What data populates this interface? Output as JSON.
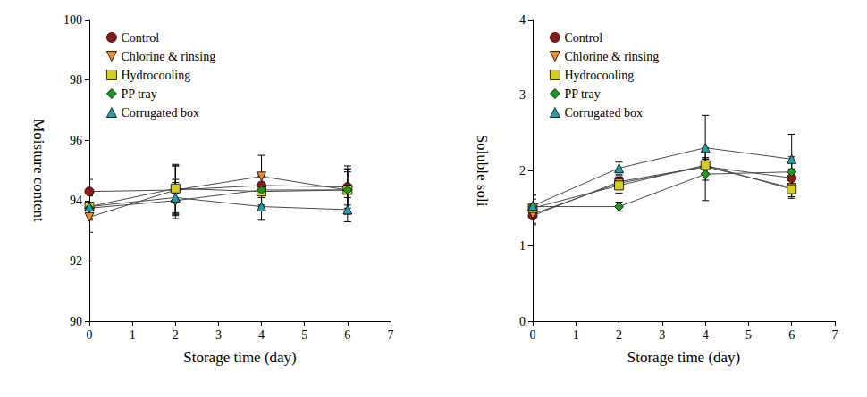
{
  "chart_data": [
    {
      "type": "line",
      "xlabel": "Storage time (day)",
      "ylabel": "Moisture content",
      "x": [
        0,
        2,
        4,
        6
      ],
      "xlim": [
        0,
        7
      ],
      "xticks": [
        0,
        1,
        2,
        3,
        4,
        5,
        6,
        7
      ],
      "ylim": [
        90,
        100
      ],
      "yticks": [
        90,
        92,
        94,
        96,
        98,
        100
      ],
      "grid": false,
      "legend": "upper left",
      "series": [
        {
          "name": "Control",
          "color": "#8b1a1a",
          "marker": "circle",
          "values": [
            94.3,
            94.35,
            94.5,
            94.45
          ],
          "errors": [
            0.4,
            0.8,
            0.3,
            0.6
          ]
        },
        {
          "name": "Chlorine & rinsing",
          "color": "#f08a24",
          "marker": "triangle-down",
          "values": [
            93.45,
            94.35,
            94.8,
            94.35
          ],
          "errors": [
            0.5,
            0.8,
            0.7,
            0.7
          ]
        },
        {
          "name": "Hydrocooling",
          "color": "#d4cc2a",
          "marker": "square",
          "values": [
            93.8,
            94.4,
            94.3,
            94.35
          ],
          "errors": [
            0.4,
            0.8,
            0.5,
            0.8
          ]
        },
        {
          "name": "PP tray",
          "color": "#1a9a1a",
          "marker": "diamond",
          "values": [
            93.75,
            94.0,
            94.35,
            94.35
          ],
          "errors": [
            0.4,
            0.6,
            0.5,
            0.6
          ]
        },
        {
          "name": "Corrugated box",
          "color": "#20a0a8",
          "marker": "triangle",
          "values": [
            93.8,
            94.1,
            93.8,
            93.7
          ],
          "errors": [
            0.4,
            0.6,
            0.45,
            0.4
          ]
        }
      ]
    },
    {
      "type": "line",
      "xlabel": "Storage time (day)",
      "ylabel": "Soluble soli",
      "x": [
        0,
        2,
        4,
        6
      ],
      "xlim": [
        0,
        7
      ],
      "xticks": [
        0,
        1,
        2,
        3,
        4,
        5,
        6,
        7
      ],
      "ylim": [
        0,
        4
      ],
      "yticks": [
        0,
        1,
        2,
        3,
        4
      ],
      "grid": false,
      "legend": "upper left",
      "series": [
        {
          "name": "Control",
          "color": "#8b1a1a",
          "marker": "circle",
          "values": [
            1.4,
            1.85,
            2.05,
            1.9
          ],
          "errors": [
            0.12,
            0.08,
            0.1,
            0.12
          ]
        },
        {
          "name": "Chlorine & rinsing",
          "color": "#f08a24",
          "marker": "triangle-down",
          "values": [
            1.42,
            1.83,
            2.05,
            1.77
          ],
          "errors": [
            0.12,
            0.08,
            0.1,
            0.12
          ]
        },
        {
          "name": "Hydrocooling",
          "color": "#d4cc2a",
          "marker": "square",
          "values": [
            1.5,
            1.8,
            2.07,
            1.75
          ],
          "errors": [
            0.12,
            0.1,
            0.1,
            0.12
          ]
        },
        {
          "name": "PP tray",
          "color": "#1a9a1a",
          "marker": "diamond",
          "values": [
            1.52,
            1.52,
            1.95,
            1.98
          ],
          "errors": [
            0.15,
            0.06,
            0.35,
            0.2
          ]
        },
        {
          "name": "Corrugated box",
          "color": "#20a0a8",
          "marker": "triangle",
          "values": [
            1.53,
            2.03,
            2.3,
            2.15
          ],
          "errors": [
            0.15,
            0.08,
            0.43,
            0.33
          ]
        }
      ]
    }
  ]
}
